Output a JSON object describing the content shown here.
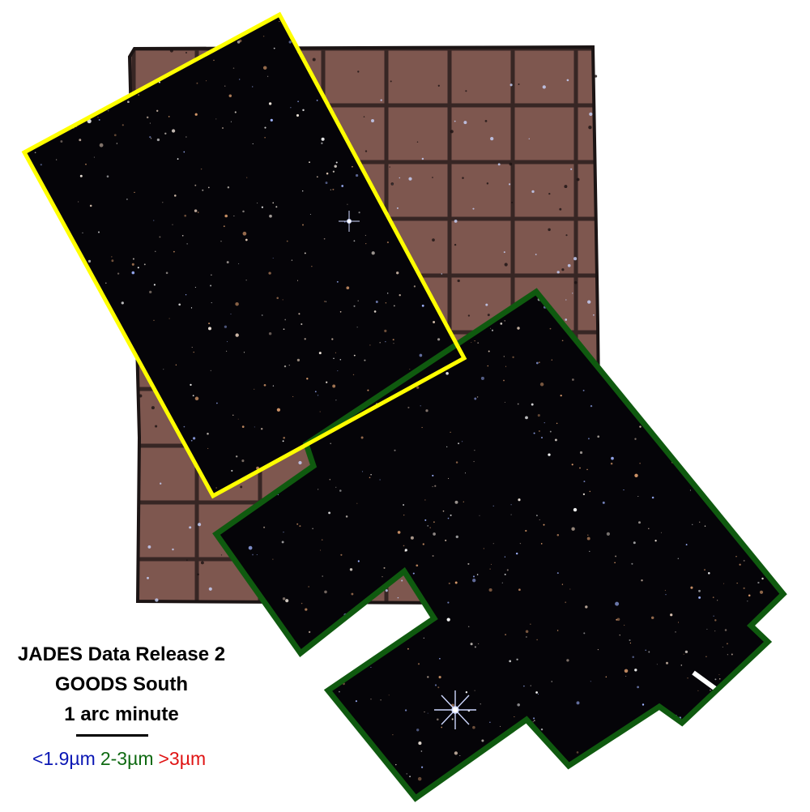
{
  "caption": {
    "title": "JADES Data Release 2",
    "field": "GOODS South",
    "scale_label": "1 arc minute"
  },
  "filters": [
    {
      "label": "<1.9µm",
      "color": "#0a16b4"
    },
    {
      "label": "2-3µm",
      "color": "#0f6a12"
    },
    {
      "label": ">3µm",
      "color": "#e01414"
    }
  ],
  "colors": {
    "sky_background": "#050408",
    "outer_mosaic": "#7e574f",
    "region_1_outline": "#ffff00",
    "region_2_outline": "#0f5a0f"
  }
}
